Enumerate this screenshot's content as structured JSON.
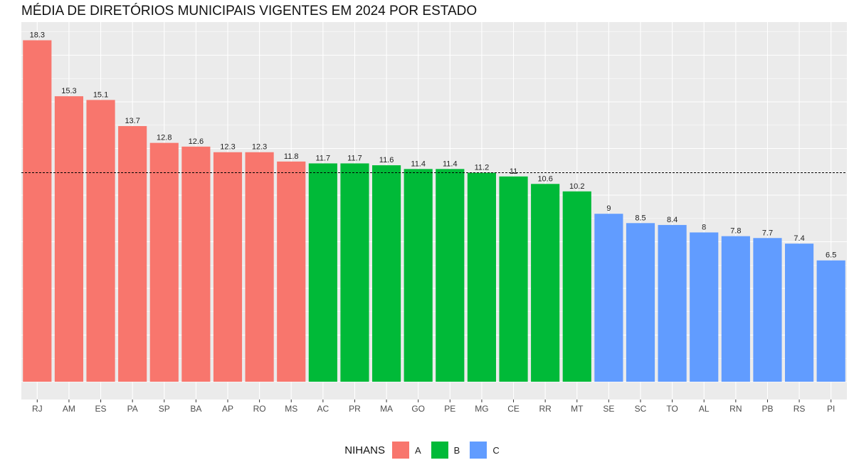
{
  "chart_data": {
    "type": "bar",
    "title": "MÉDIA DE DIRETÓRIOS MUNICIPAIS VIGENTES EM 2024 POR ESTADO",
    "xlabel": "",
    "ylabel": "",
    "ylim": [
      0,
      19.2
    ],
    "reference_line": 11.2,
    "categories": [
      "RJ",
      "AM",
      "ES",
      "PA",
      "SP",
      "BA",
      "AP",
      "RO",
      "MS",
      "AC",
      "PR",
      "MA",
      "GO",
      "PE",
      "MG",
      "CE",
      "RR",
      "MT",
      "SE",
      "SC",
      "TO",
      "AL",
      "RN",
      "PB",
      "RS",
      "PI"
    ],
    "values": [
      18.3,
      15.3,
      15.1,
      13.7,
      12.8,
      12.6,
      12.3,
      12.3,
      11.8,
      11.7,
      11.7,
      11.6,
      11.4,
      11.4,
      11.2,
      11,
      10.6,
      10.2,
      9,
      8.5,
      8.4,
      8,
      7.8,
      7.7,
      7.4,
      6.5
    ],
    "groups": [
      "A",
      "A",
      "A",
      "A",
      "A",
      "A",
      "A",
      "A",
      "A",
      "B",
      "B",
      "B",
      "B",
      "B",
      "B",
      "B",
      "B",
      "B",
      "C",
      "C",
      "C",
      "C",
      "C",
      "C",
      "C",
      "C"
    ],
    "legend": {
      "title": "NIHANS",
      "placement": "bottom",
      "entries": [
        {
          "label": "A",
          "color": "#F8766D"
        },
        {
          "label": "B",
          "color": "#00BA38"
        },
        {
          "label": "C",
          "color": "#619CFF"
        }
      ]
    },
    "grid": true,
    "panel_color": "#EBEBEB"
  }
}
